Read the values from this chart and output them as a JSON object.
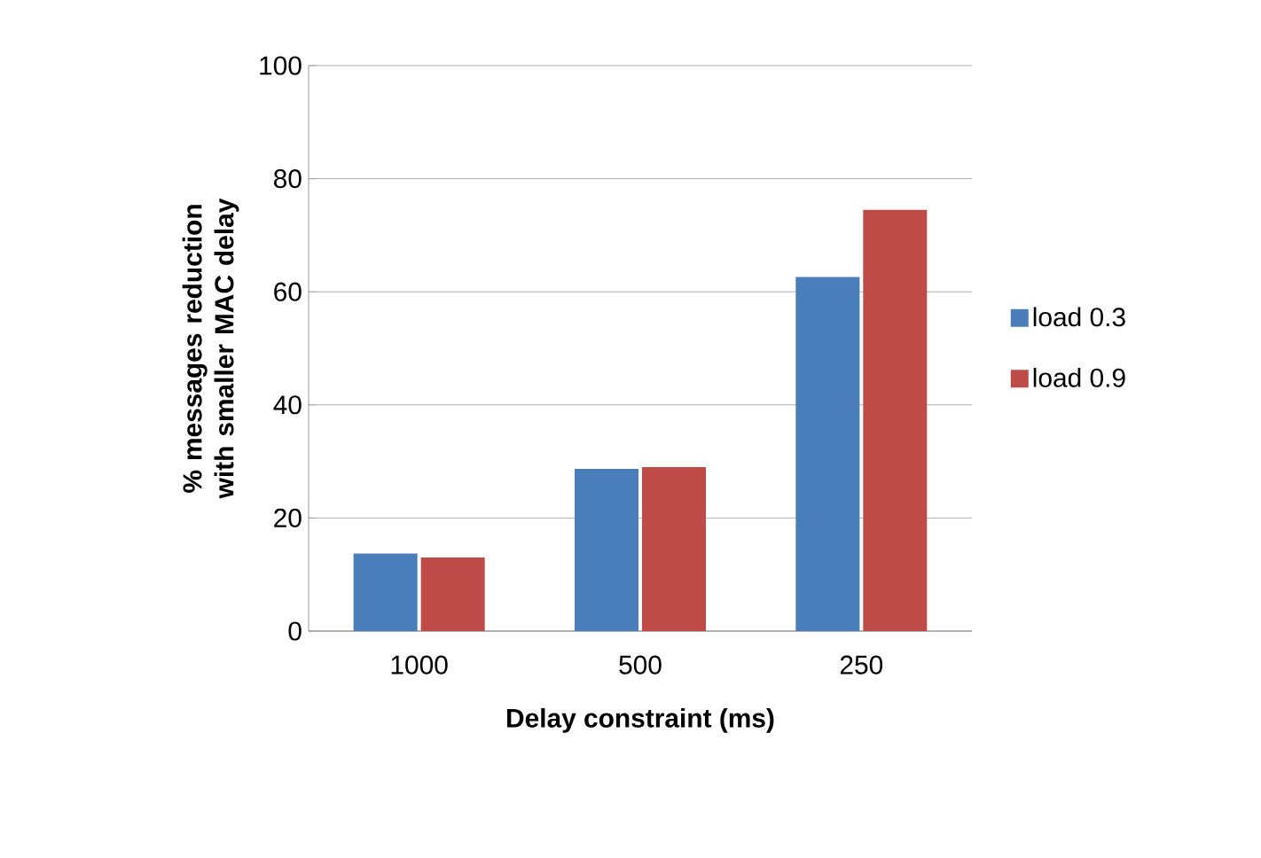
{
  "chart_data": {
    "type": "bar",
    "xlabel": "Delay constraint (ms)",
    "ylabel": "% messages reduction  with smaller MAC delay",
    "categories": [
      "1000",
      "500",
      "250"
    ],
    "series": [
      {
        "name": "load 0.3",
        "color": "#4a7ebb",
        "values": [
          13.7,
          28.7,
          62.6
        ]
      },
      {
        "name": "load 0.9",
        "color": "#be4b48",
        "values": [
          13.0,
          29.0,
          74.5
        ]
      }
    ],
    "ylim": [
      0,
      100
    ],
    "yticks": [
      0,
      20,
      40,
      60,
      80,
      100
    ],
    "grid": "y",
    "legend": "right"
  }
}
